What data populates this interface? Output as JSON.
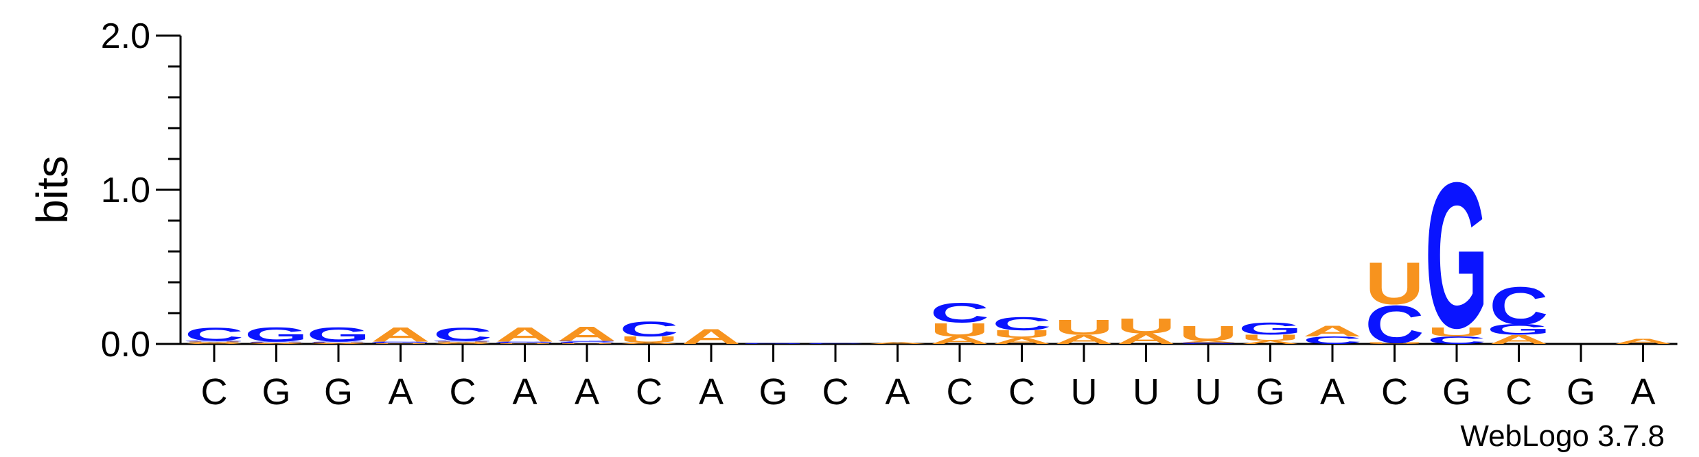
{
  "chart_data": {
    "type": "sequence-logo",
    "ylabel": "bits",
    "ylim": [
      0,
      2.0
    ],
    "y_ticks": [
      "0.0",
      "1.0",
      "2.0"
    ],
    "positions": [
      "C",
      "G",
      "G",
      "A",
      "C",
      "A",
      "A",
      "C",
      "A",
      "G",
      "C",
      "A",
      "C",
      "C",
      "U",
      "U",
      "U",
      "G",
      "A",
      "C",
      "G",
      "C",
      "G",
      "A"
    ],
    "stacks": [
      [
        {
          "b": "A",
          "h": 0.01
        },
        {
          "b": "U",
          "h": 0.005
        },
        {
          "b": "G",
          "h": 0.005
        },
        {
          "b": "C",
          "h": 0.09
        }
      ],
      [
        {
          "b": "A",
          "h": 0.005
        },
        {
          "b": "U",
          "h": 0.005
        },
        {
          "b": "C",
          "h": 0.005
        },
        {
          "b": "G",
          "h": 0.095
        }
      ],
      [
        {
          "b": "A",
          "h": 0.005
        },
        {
          "b": "U",
          "h": 0.005
        },
        {
          "b": "C",
          "h": 0.005
        },
        {
          "b": "G",
          "h": 0.095
        }
      ],
      [
        {
          "b": "U",
          "h": 0.005
        },
        {
          "b": "C",
          "h": 0.005
        },
        {
          "b": "G",
          "h": 0.005
        },
        {
          "b": "A",
          "h": 0.095
        }
      ],
      [
        {
          "b": "A",
          "h": 0.01
        },
        {
          "b": "U",
          "h": 0.005
        },
        {
          "b": "G",
          "h": 0.005
        },
        {
          "b": "C",
          "h": 0.09
        }
      ],
      [
        {
          "b": "U",
          "h": 0.005
        },
        {
          "b": "C",
          "h": 0.005
        },
        {
          "b": "G",
          "h": 0.005
        },
        {
          "b": "A",
          "h": 0.095
        }
      ],
      [
        {
          "b": "U",
          "h": 0.005
        },
        {
          "b": "C",
          "h": 0.01
        },
        {
          "b": "G",
          "h": 0.005
        },
        {
          "b": "A",
          "h": 0.095
        }
      ],
      [
        {
          "b": "A",
          "h": 0.01
        },
        {
          "b": "U",
          "h": 0.04
        },
        {
          "b": "C",
          "h": 0.1
        }
      ],
      [
        {
          "b": "A",
          "h": 0.1
        }
      ],
      [
        {
          "b": "G",
          "h": 0.005
        }
      ],
      [
        {
          "b": "C",
          "h": 0.005
        }
      ],
      [
        {
          "b": "A",
          "h": 0.01
        }
      ],
      [
        {
          "b": "A",
          "h": 0.05
        },
        {
          "b": "U",
          "h": 0.09
        },
        {
          "b": "C",
          "h": 0.13
        }
      ],
      [
        {
          "b": "A",
          "h": 0.04
        },
        {
          "b": "U",
          "h": 0.05
        },
        {
          "b": "C",
          "h": 0.09
        }
      ],
      [
        {
          "b": "A",
          "h": 0.06
        },
        {
          "b": "U",
          "h": 0.1
        }
      ],
      [
        {
          "b": "A",
          "h": 0.07
        },
        {
          "b": "U",
          "h": 0.1
        }
      ],
      [
        {
          "b": "C",
          "h": 0.01
        },
        {
          "b": "A",
          "h": 0.01
        },
        {
          "b": "U",
          "h": 0.1
        }
      ],
      [
        {
          "b": "A",
          "h": 0.02
        },
        {
          "b": "U",
          "h": 0.04
        },
        {
          "b": "G",
          "h": 0.08
        }
      ],
      [
        {
          "b": "C",
          "h": 0.05
        },
        {
          "b": "A",
          "h": 0.07
        }
      ],
      [
        {
          "b": "U",
          "h": 0.01
        },
        {
          "b": "C",
          "h": 0.25
        },
        {
          "b": "U",
          "h": 0.28
        }
      ],
      [
        {
          "b": "C",
          "h": 0.05
        },
        {
          "b": "U",
          "h": 0.06
        },
        {
          "b": "G",
          "h": 0.97
        }
      ],
      [
        {
          "b": "A",
          "h": 0.06
        },
        {
          "b": "G",
          "h": 0.07
        },
        {
          "b": "C",
          "h": 0.25
        }
      ],
      [],
      [
        {
          "b": "A",
          "h": 0.035
        }
      ]
    ]
  },
  "colors": {
    "A": "#f7931e",
    "U": "#f7931e",
    "C": "#0a14ff",
    "G": "#0a14ff",
    "axis": "#000000"
  },
  "credit": "WebLogo 3.7.8"
}
